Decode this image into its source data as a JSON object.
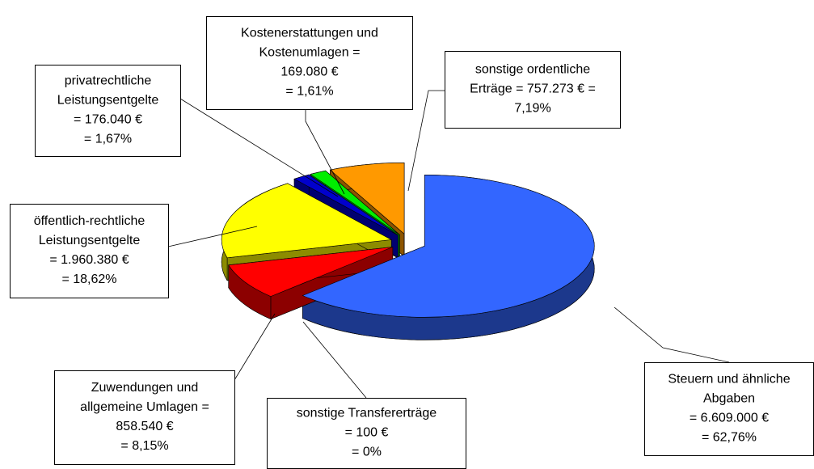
{
  "chart_data": {
    "type": "pie",
    "labels": [
      [
        "Steuern und ähnliche",
        "Abgaben",
        "= 6.609.000 €",
        "= 62,76%"
      ],
      [
        "sonstige Transfererträge",
        "= 100 €",
        "= 0%"
      ],
      [
        "Zuwendungen und",
        "allgemeine Umlagen =",
        "858.540 €",
        "= 8,15%"
      ],
      [
        "öffentlich-rechtliche",
        "Leistungsentgelte",
        "= 1.960.380 €",
        "= 18,62%"
      ],
      [
        "privatrechtliche",
        "Leistungsentgelte",
        "= 176.040 €",
        "= 1,67%"
      ],
      [
        "Kostenerstattungen und",
        "Kostenumlagen =",
        "169.080 €",
        "= 1,61%"
      ],
      [
        "sonstige ordentliche",
        "Erträge = 757.273 € =",
        "7,19%"
      ]
    ],
    "values": [
      62.76,
      0,
      8.15,
      18.62,
      1.67,
      1.61,
      7.19
    ],
    "colors": [
      "#3366ff",
      "#990099",
      "#ff0000",
      "#ffff00",
      "#0000cc",
      "#00ee00",
      "#ff9900"
    ]
  }
}
